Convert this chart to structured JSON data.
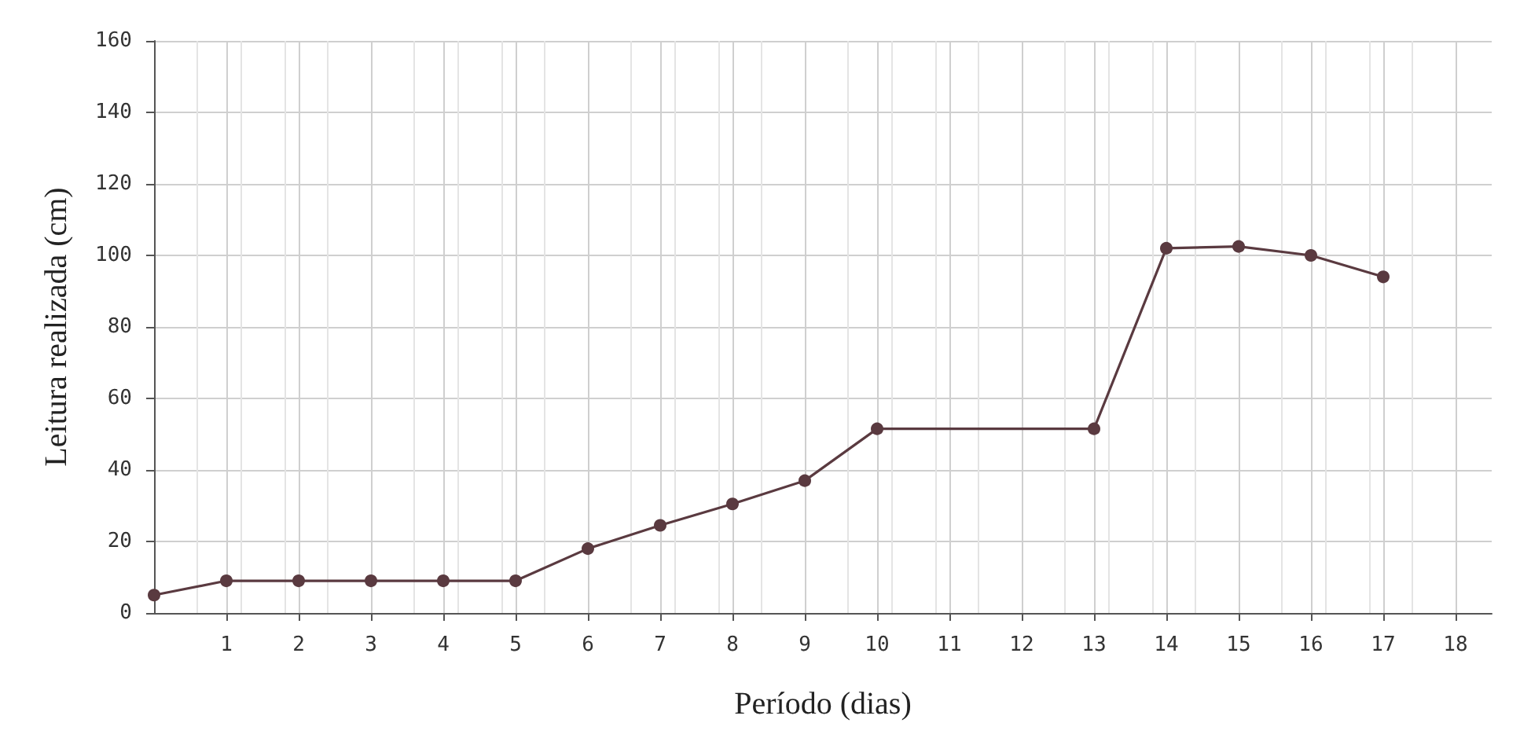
{
  "chart_data": {
    "type": "line",
    "xlabel": "Período (dias)",
    "ylabel": "Leitura realizada (cm)",
    "x": [
      0,
      1,
      2,
      3,
      4,
      5,
      6,
      7,
      8,
      9,
      10,
      13,
      14,
      15,
      16,
      17
    ],
    "series": [
      {
        "color": "#5a3a40",
        "values": [
          5,
          9,
          9,
          9,
          9,
          9,
          18,
          24.5,
          30.5,
          37,
          51.5,
          51.5,
          102,
          102.5,
          100,
          94
        ]
      }
    ],
    "xlim": [
      0,
      18.5
    ],
    "xticks": [
      1,
      2,
      3,
      4,
      5,
      6,
      7,
      8,
      9,
      10,
      11,
      12,
      13,
      14,
      15,
      16,
      17,
      18
    ],
    "ylim": [
      0,
      160
    ],
    "yticks": [
      0,
      20,
      40,
      60,
      80,
      100,
      120,
      140,
      160
    ],
    "grid": true,
    "marker": "circle",
    "line_style": "solid"
  }
}
